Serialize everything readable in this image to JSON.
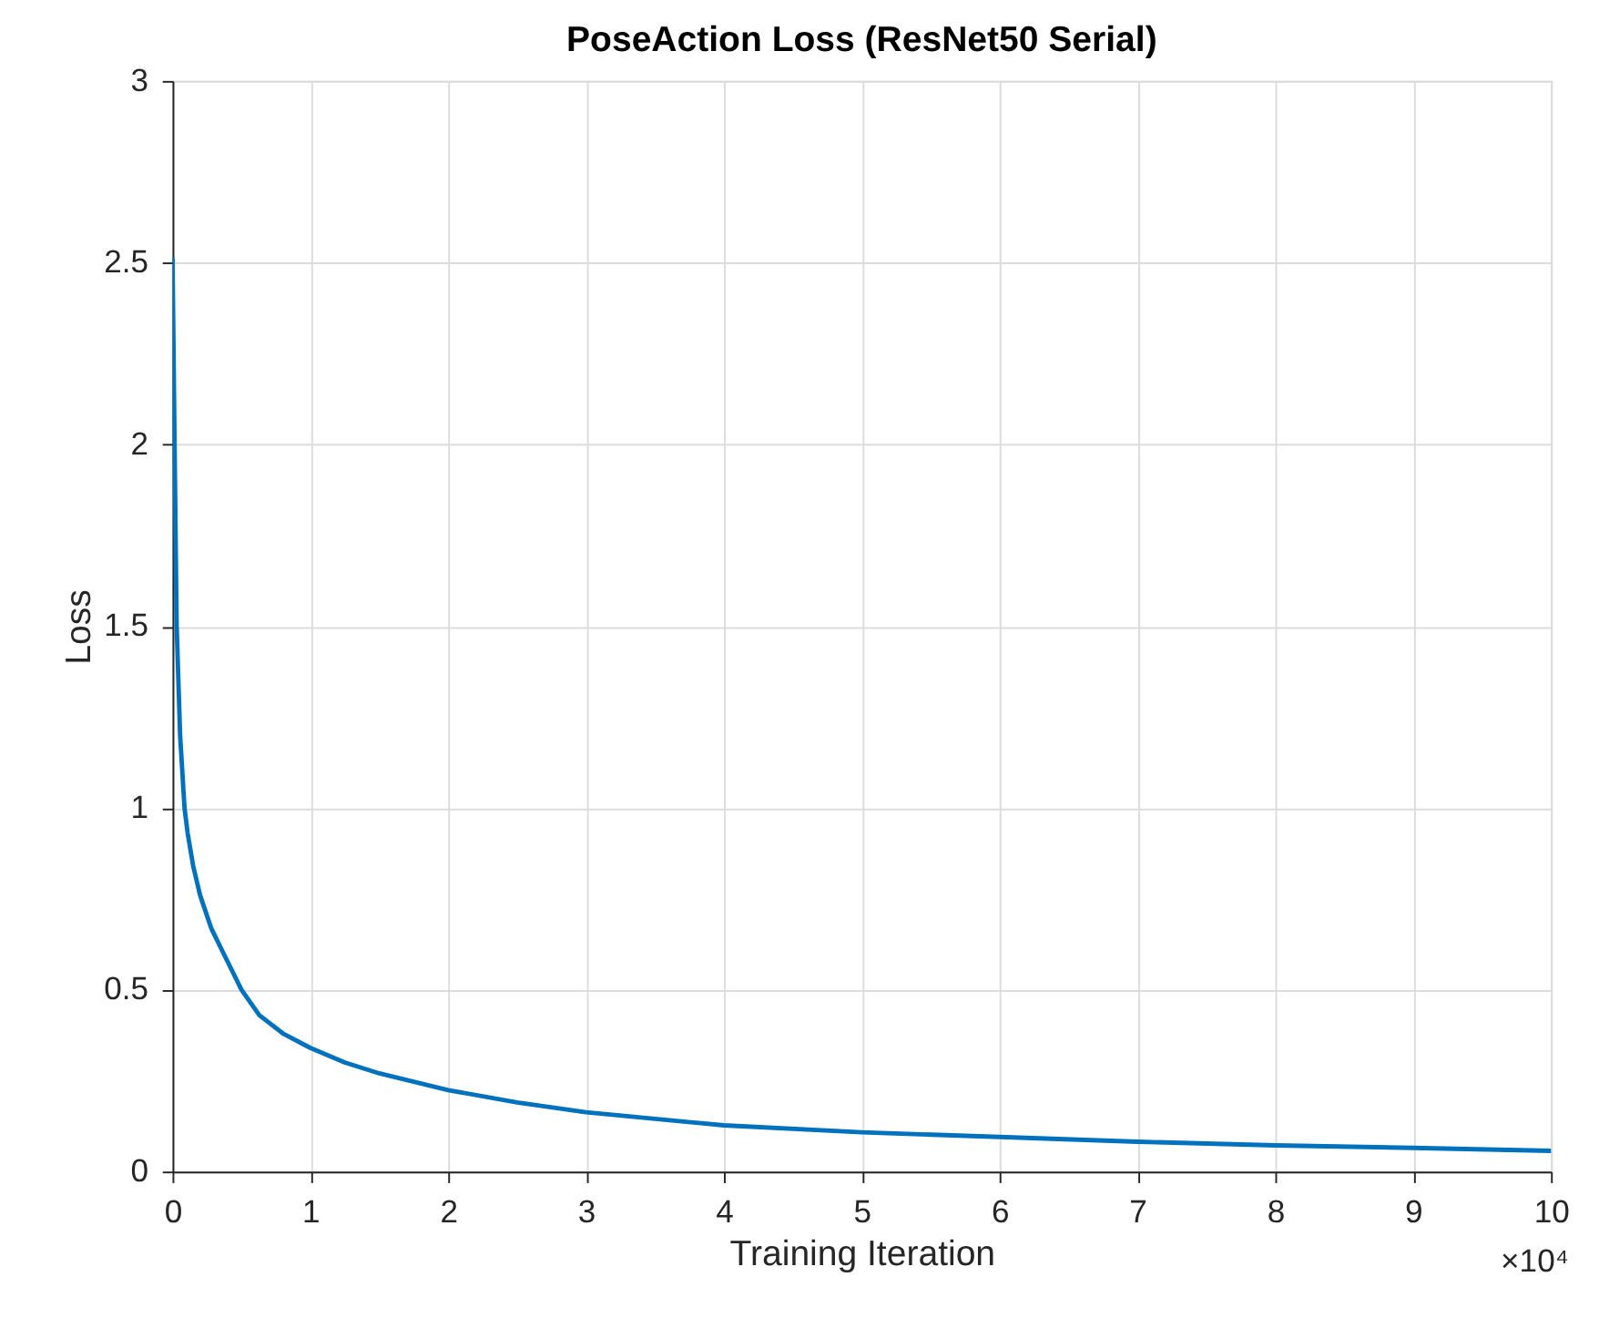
{
  "chart_data": {
    "type": "line",
    "title": "PoseAction Loss (ResNet50 Serial)",
    "xlabel": "Training Iteration",
    "ylabel": "Loss",
    "annotations": [
      "×10⁴"
    ],
    "series": [
      {
        "color": "#0072bd",
        "x": [
          0,
          0.015,
          0.03,
          0.055,
          0.087,
          0.11,
          0.15,
          0.2,
          0.28,
          0.37,
          0.5,
          0.63,
          0.8,
          1.0,
          1.25,
          1.5,
          2.0,
          2.5,
          3.0,
          4.0,
          5.0,
          6.0,
          7.0,
          8.0,
          9.0,
          10.0
        ],
        "values": [
          2.51,
          2.0,
          1.5,
          1.2,
          1.0,
          0.93,
          0.84,
          0.76,
          0.67,
          0.6,
          0.5,
          0.43,
          0.38,
          0.34,
          0.3,
          0.27,
          0.224,
          0.19,
          0.163,
          0.127,
          0.108,
          0.095,
          0.082,
          0.072,
          0.065,
          0.057
        ]
      }
    ],
    "xlim": [
      0,
      10
    ],
    "xticks": [
      0,
      1,
      2,
      3,
      4,
      5,
      6,
      7,
      8,
      9,
      10
    ],
    "ylim": [
      0,
      3
    ],
    "yticks": [
      0,
      0.5,
      1,
      1.5,
      2,
      2.5,
      3
    ],
    "grid": true,
    "line_style": "solid",
    "marker": "none"
  }
}
